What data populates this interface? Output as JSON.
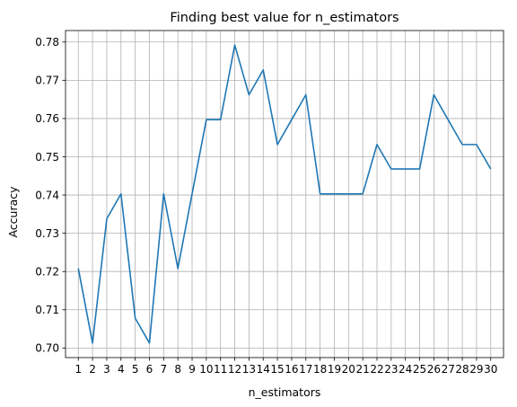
{
  "chart_data": {
    "type": "line",
    "title": "Finding best value for n_estimators",
    "xlabel": "n_estimators",
    "ylabel": "Accuracy",
    "x": [
      1,
      2,
      3,
      4,
      5,
      6,
      7,
      8,
      9,
      10,
      11,
      12,
      13,
      14,
      15,
      16,
      17,
      18,
      19,
      20,
      21,
      22,
      23,
      24,
      25,
      26,
      27,
      28,
      29,
      30
    ],
    "series": [
      {
        "values": [
          0.7208,
          0.7013,
          0.7338,
          0.7403,
          0.7078,
          0.7013,
          0.7403,
          0.7208,
          0.7403,
          0.7597,
          0.7597,
          0.7792,
          0.7662,
          0.7727,
          0.7532,
          0.7597,
          0.7662,
          0.7403,
          0.7403,
          0.7403,
          0.7403,
          0.7532,
          0.7468,
          0.7468,
          0.7468,
          0.7662,
          0.7597,
          0.7532,
          0.7532,
          0.7468
        ]
      }
    ],
    "xlim": [
      0.1,
      30.9
    ],
    "ylim": [
      0.6975,
      0.783
    ],
    "xticks": [
      "1",
      "2",
      "3",
      "4",
      "5",
      "6",
      "7",
      "8",
      "9",
      "10",
      "11",
      "12",
      "13",
      "14",
      "15",
      "16",
      "17",
      "18",
      "19",
      "20",
      "21",
      "22",
      "23",
      "24",
      "25",
      "26",
      "27",
      "28",
      "29",
      "30"
    ],
    "yticks": [
      0.7,
      0.71,
      0.72,
      0.73,
      0.74,
      0.75,
      0.76,
      0.77,
      0.78
    ],
    "ytick_labels": [
      "0.70",
      "0.71",
      "0.72",
      "0.73",
      "0.74",
      "0.75",
      "0.76",
      "0.77",
      "0.78"
    ],
    "grid": true,
    "line_color": "#1f77b4",
    "grid_color": "#b0b0b0"
  }
}
